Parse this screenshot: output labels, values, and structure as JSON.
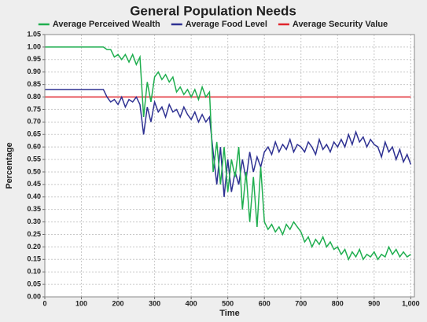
{
  "chart_data": {
    "type": "line",
    "title": "General Population Needs",
    "xlabel": "Time",
    "ylabel": "Percentage",
    "x": [
      0,
      10,
      20,
      30,
      40,
      50,
      60,
      70,
      80,
      90,
      100,
      110,
      120,
      130,
      140,
      150,
      160,
      170,
      180,
      190,
      200,
      210,
      220,
      230,
      240,
      250,
      260,
      270,
      280,
      290,
      300,
      310,
      320,
      330,
      340,
      350,
      360,
      370,
      380,
      390,
      400,
      410,
      420,
      430,
      440,
      450,
      460,
      470,
      480,
      490,
      500,
      510,
      520,
      530,
      540,
      550,
      560,
      570,
      580,
      590,
      600,
      610,
      620,
      630,
      640,
      650,
      660,
      670,
      680,
      690,
      700,
      710,
      720,
      730,
      740,
      750,
      760,
      770,
      780,
      790,
      800,
      810,
      820,
      830,
      840,
      850,
      860,
      870,
      880,
      890,
      900,
      910,
      920,
      930,
      940,
      950,
      960,
      970,
      980,
      990,
      1000
    ],
    "series": [
      {
        "name": "Average Perceived Wealth",
        "color": "#1fae4f",
        "values": [
          1,
          1,
          1,
          1,
          1,
          1,
          1,
          1,
          1,
          1,
          1,
          1,
          1,
          1,
          1,
          1,
          1,
          0.99,
          0.99,
          0.96,
          0.97,
          0.95,
          0.97,
          0.94,
          0.97,
          0.93,
          0.96,
          0.72,
          0.86,
          0.78,
          0.88,
          0.9,
          0.87,
          0.89,
          0.86,
          0.88,
          0.82,
          0.84,
          0.81,
          0.83,
          0.8,
          0.83,
          0.79,
          0.84,
          0.8,
          0.82,
          0.5,
          0.62,
          0.45,
          0.6,
          0.42,
          0.55,
          0.48,
          0.6,
          0.35,
          0.5,
          0.3,
          0.48,
          0.28,
          0.52,
          0.3,
          0.27,
          0.29,
          0.26,
          0.28,
          0.25,
          0.29,
          0.27,
          0.3,
          0.28,
          0.26,
          0.22,
          0.24,
          0.2,
          0.23,
          0.21,
          0.24,
          0.2,
          0.22,
          0.19,
          0.2,
          0.17,
          0.19,
          0.15,
          0.18,
          0.16,
          0.19,
          0.15,
          0.17,
          0.16,
          0.18,
          0.15,
          0.17,
          0.16,
          0.2,
          0.17,
          0.19,
          0.16,
          0.18,
          0.16,
          0.17
        ]
      },
      {
        "name": "Average Food Level",
        "color": "#2e3192",
        "values": [
          0.83,
          0.83,
          0.83,
          0.83,
          0.83,
          0.83,
          0.83,
          0.83,
          0.83,
          0.83,
          0.83,
          0.83,
          0.83,
          0.83,
          0.83,
          0.83,
          0.83,
          0.8,
          0.78,
          0.79,
          0.77,
          0.8,
          0.76,
          0.79,
          0.78,
          0.8,
          0.77,
          0.65,
          0.76,
          0.7,
          0.78,
          0.74,
          0.76,
          0.72,
          0.77,
          0.74,
          0.75,
          0.72,
          0.76,
          0.73,
          0.71,
          0.74,
          0.7,
          0.73,
          0.7,
          0.72,
          0.58,
          0.45,
          0.6,
          0.4,
          0.55,
          0.42,
          0.5,
          0.45,
          0.55,
          0.47,
          0.58,
          0.5,
          0.56,
          0.52,
          0.58,
          0.6,
          0.57,
          0.62,
          0.58,
          0.61,
          0.59,
          0.63,
          0.58,
          0.61,
          0.6,
          0.58,
          0.62,
          0.6,
          0.57,
          0.63,
          0.59,
          0.61,
          0.58,
          0.62,
          0.6,
          0.63,
          0.6,
          0.65,
          0.61,
          0.66,
          0.62,
          0.64,
          0.6,
          0.63,
          0.61,
          0.6,
          0.56,
          0.62,
          0.58,
          0.6,
          0.55,
          0.59,
          0.54,
          0.57,
          0.53
        ]
      },
      {
        "name": "Average Security Value",
        "color": "#e0242b",
        "values": [
          0.8,
          0.8,
          0.8,
          0.8,
          0.8,
          0.8,
          0.8,
          0.8,
          0.8,
          0.8,
          0.8,
          0.8,
          0.8,
          0.8,
          0.8,
          0.8,
          0.8,
          0.8,
          0.8,
          0.8,
          0.8,
          0.8,
          0.8,
          0.8,
          0.8,
          0.8,
          0.8,
          0.8,
          0.8,
          0.8,
          0.8,
          0.8,
          0.8,
          0.8,
          0.8,
          0.8,
          0.8,
          0.8,
          0.8,
          0.8,
          0.8,
          0.8,
          0.8,
          0.8,
          0.8,
          0.8,
          0.8,
          0.8,
          0.8,
          0.8,
          0.8,
          0.8,
          0.8,
          0.8,
          0.8,
          0.8,
          0.8,
          0.8,
          0.8,
          0.8,
          0.8,
          0.8,
          0.8,
          0.8,
          0.8,
          0.8,
          0.8,
          0.8,
          0.8,
          0.8,
          0.8,
          0.8,
          0.8,
          0.8,
          0.8,
          0.8,
          0.8,
          0.8,
          0.8,
          0.8,
          0.8,
          0.8,
          0.8,
          0.8,
          0.8,
          0.8,
          0.8,
          0.8,
          0.8,
          0.8,
          0.8,
          0.8,
          0.8,
          0.8,
          0.8,
          0.8,
          0.8,
          0.8,
          0.8,
          0.8,
          0.8
        ]
      }
    ],
    "xlim": [
      0,
      1010
    ],
    "xticks": [
      0,
      100,
      200,
      300,
      400,
      500,
      600,
      700,
      800,
      900,
      {
        "value": 1000,
        "label": "1,000"
      }
    ],
    "ylim": [
      0,
      1.05
    ],
    "yticks": [
      {
        "value": 0,
        "label": "0.00"
      },
      {
        "value": 0.05,
        "label": "0.05"
      },
      {
        "value": 0.1,
        "label": "0.10"
      },
      {
        "value": 0.15,
        "label": "0.15"
      },
      {
        "value": 0.2,
        "label": "0.20"
      },
      {
        "value": 0.25,
        "label": "0.25"
      },
      {
        "value": 0.3,
        "label": "0.30"
      },
      {
        "value": 0.35,
        "label": "0.35"
      },
      {
        "value": 0.4,
        "label": "0.40"
      },
      {
        "value": 0.45,
        "label": "0.45"
      },
      {
        "value": 0.5,
        "label": "0.50"
      },
      {
        "value": 0.55,
        "label": "0.55"
      },
      {
        "value": 0.6,
        "label": "0.60"
      },
      {
        "value": 0.65,
        "label": "0.65"
      },
      {
        "value": 0.7,
        "label": "0.70"
      },
      {
        "value": 0.75,
        "label": "0.75"
      },
      {
        "value": 0.8,
        "label": "0.80"
      },
      {
        "value": 0.85,
        "label": "0.85"
      },
      {
        "value": 0.9,
        "label": "0.90"
      },
      {
        "value": 0.95,
        "label": "0.95"
      },
      {
        "value": 1,
        "label": "1.00"
      },
      {
        "value": 1.05,
        "label": "1.05"
      }
    ],
    "grid": true,
    "legend": "top"
  }
}
